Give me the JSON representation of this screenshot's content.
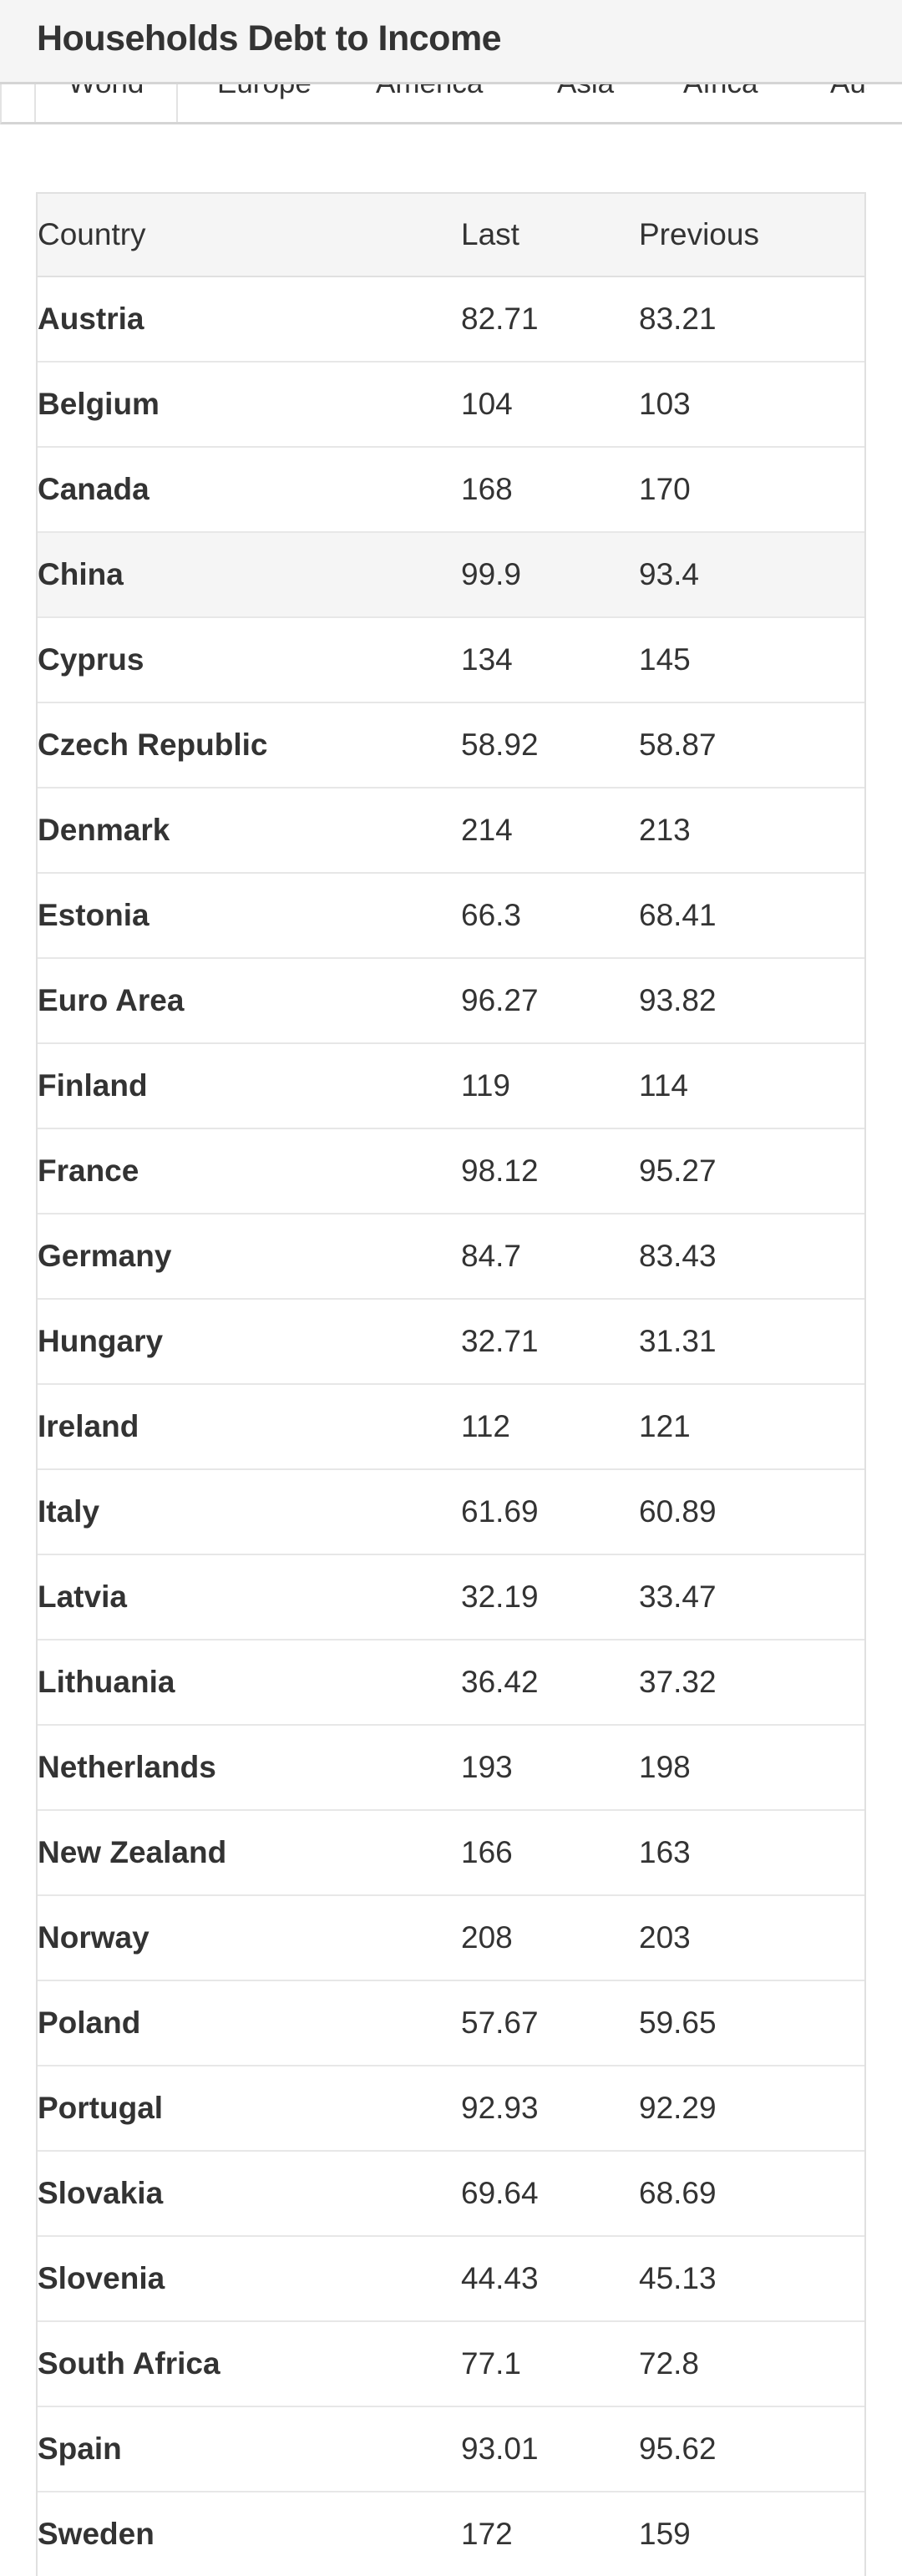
{
  "header": {
    "title": "Households Debt to Income"
  },
  "tabs": [
    {
      "label": "World",
      "active": true
    },
    {
      "label": "Europe",
      "active": false
    },
    {
      "label": "America",
      "active": false
    },
    {
      "label": "Asia",
      "active": false
    },
    {
      "label": "Africa",
      "active": false
    },
    {
      "label": "Australia",
      "active": false
    }
  ],
  "table": {
    "columns": [
      "Country",
      "Last",
      "Previous"
    ],
    "rows": [
      {
        "country": "Austria",
        "last": "82.71",
        "previous": "83.21"
      },
      {
        "country": "Belgium",
        "last": "104",
        "previous": "103"
      },
      {
        "country": "Canada",
        "last": "168",
        "previous": "170"
      },
      {
        "country": "China",
        "last": "99.9",
        "previous": "93.4",
        "highlighted": true
      },
      {
        "country": "Cyprus",
        "last": "134",
        "previous": "145"
      },
      {
        "country": "Czech Republic",
        "last": "58.92",
        "previous": "58.87"
      },
      {
        "country": "Denmark",
        "last": "214",
        "previous": "213"
      },
      {
        "country": "Estonia",
        "last": "66.3",
        "previous": "68.41"
      },
      {
        "country": "Euro Area",
        "last": "96.27",
        "previous": "93.82"
      },
      {
        "country": "Finland",
        "last": "119",
        "previous": "114"
      },
      {
        "country": "France",
        "last": "98.12",
        "previous": "95.27"
      },
      {
        "country": "Germany",
        "last": "84.7",
        "previous": "83.43"
      },
      {
        "country": "Hungary",
        "last": "32.71",
        "previous": "31.31"
      },
      {
        "country": "Ireland",
        "last": "112",
        "previous": "121"
      },
      {
        "country": "Italy",
        "last": "61.69",
        "previous": "60.89"
      },
      {
        "country": "Latvia",
        "last": "32.19",
        "previous": "33.47"
      },
      {
        "country": "Lithuania",
        "last": "36.42",
        "previous": "37.32"
      },
      {
        "country": "Netherlands",
        "last": "193",
        "previous": "198"
      },
      {
        "country": "New Zealand",
        "last": "166",
        "previous": "163"
      },
      {
        "country": "Norway",
        "last": "208",
        "previous": "203"
      },
      {
        "country": "Poland",
        "last": "57.67",
        "previous": "59.65"
      },
      {
        "country": "Portugal",
        "last": "92.93",
        "previous": "92.29"
      },
      {
        "country": "Slovakia",
        "last": "69.64",
        "previous": "68.69"
      },
      {
        "country": "Slovenia",
        "last": "44.43",
        "previous": "45.13"
      },
      {
        "country": "South Africa",
        "last": "77.1",
        "previous": "72.8"
      },
      {
        "country": "Spain",
        "last": "93.01",
        "previous": "95.62"
      },
      {
        "country": "Sweden",
        "last": "172",
        "previous": "159"
      }
    ]
  },
  "colors": {
    "header_bg": "#f5f5f5",
    "divider": "#d5d5d5",
    "table_border": "#e0e0e0",
    "row_border": "#e7e7e7",
    "thead_bg": "#f5f5f5",
    "highlight_bg": "#f5f5f5",
    "text": "#333333"
  }
}
